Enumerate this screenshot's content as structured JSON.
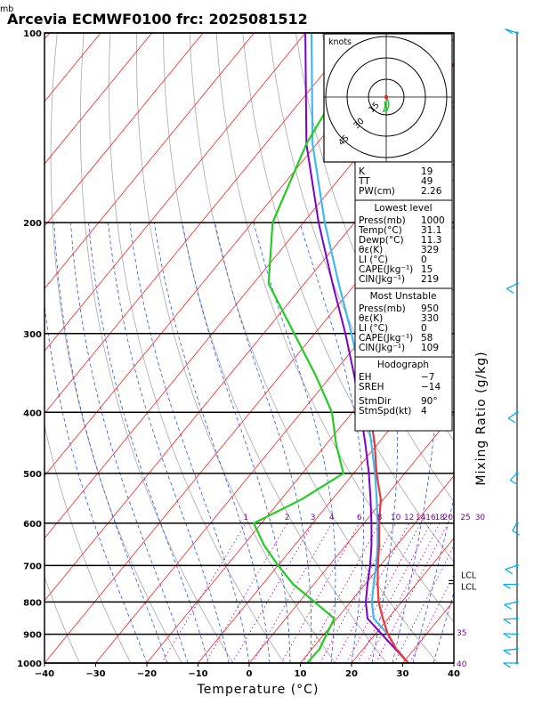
{
  "chart_data": {
    "type": "skew-t",
    "title": "Arcevia ECMWF0100 frc: 2025081512",
    "xlabel": "Temperature (°C)",
    "ylabel_unit": "mb",
    "right_label": "Mixing Ratio (g/kg)",
    "x_ticks": [
      "−40",
      "−30",
      "−20",
      "−10",
      "0",
      "10",
      "20",
      "30",
      "40"
    ],
    "p_ticks": [
      "100",
      "200",
      "300",
      "400",
      "500",
      "600",
      "700",
      "800",
      "900",
      "1000"
    ],
    "pressure_levels": [
      1000,
      950,
      900,
      850,
      800,
      750,
      700,
      650,
      600,
      550,
      500,
      450,
      400,
      350,
      300,
      250,
      200,
      150,
      100
    ],
    "temperature": [
      31.1,
      26.5,
      22.5,
      19.0,
      15.5,
      12.5,
      9.5,
      6.5,
      3.0,
      -0.5,
      -5.5,
      -10.5,
      -16.5,
      -23.0,
      -31.0,
      -40.0,
      -47.5,
      -53.5,
      -57.0
    ],
    "dewpoint": [
      11.3,
      11.5,
      10.5,
      9.5,
      3.0,
      -4.0,
      -10.0,
      -16.0,
      -21.5,
      -16.0,
      -12.0,
      -18.0,
      -24.0,
      -33.0,
      -44.0,
      -57.0,
      -66.0,
      -72.0,
      -77.0
    ],
    "parcel": [
      31.1,
      26.3,
      21.3,
      16.0,
      13.0,
      10.5,
      8.0,
      5.0,
      1.5,
      -2.5,
      -7.0,
      -12.3,
      -18.4,
      -25.5,
      -34.0,
      -44.5,
      -57.0,
      -72.0,
      -90.0
    ],
    "lcl_labels": [
      "LCL",
      "LCL"
    ],
    "mixing_ratio_labels": [
      "1",
      "2",
      "3",
      "4",
      "6",
      "8",
      "10",
      "12",
      "14",
      "16",
      "18",
      "20",
      "25",
      "30"
    ],
    "temp_labels_right": [
      "35",
      "40"
    ],
    "hodograph": {
      "units_label": "knots",
      "ring_labels": [
        "15",
        "30",
        "45"
      ]
    },
    "indices": {
      "general": [
        {
          "label": "K",
          "value": "19"
        },
        {
          "label": "TT",
          "value": "49"
        },
        {
          "label": "PW(cm)",
          "value": "2.26"
        }
      ],
      "lowest_level_title": "Lowest level",
      "lowest_level": [
        {
          "label": "Press(mb)",
          "value": "1000"
        },
        {
          "label": "Temp(°C)",
          "value": "31.1"
        },
        {
          "label": "Dewp(°C)",
          "value": "11.3"
        },
        {
          "label": "θε(K)",
          "value": "329"
        },
        {
          "label": "LI (°C)",
          "value": "0"
        },
        {
          "label": "CAPE(Jkg⁻¹)",
          "value": "15"
        },
        {
          "label": "CIN(Jkg⁻¹)",
          "value": "219"
        }
      ],
      "most_unstable_title": "Most Unstable",
      "most_unstable": [
        {
          "label": "Press(mb)",
          "value": "950"
        },
        {
          "label": "θε(K)",
          "value": "330"
        },
        {
          "label": "LI (°C)",
          "value": "0"
        },
        {
          "label": "CAPE(Jkg⁻¹)",
          "value": "58"
        },
        {
          "label": "CIN(Jkg⁻¹)",
          "value": "109"
        }
      ],
      "hodograph_title": "Hodograph",
      "hodograph_vals": [
        {
          "label": "EH",
          "value": "−7"
        },
        {
          "label": "SREH",
          "value": "−14"
        },
        {
          "label": "StmDir",
          "value": "90°"
        },
        {
          "label": "StmSpd(kt)",
          "value": "4"
        }
      ]
    },
    "colors": {
      "isotherm": "#ff2020",
      "dry_adiabat": "#a8a8a8",
      "moist_adiabat": "#1040e0",
      "mixing_ratio": "#a000b0",
      "temperature": "#e83838",
      "dewpoint": "#22cc22",
      "parcel": "#7a00cc",
      "wind": "#00aaee"
    }
  }
}
